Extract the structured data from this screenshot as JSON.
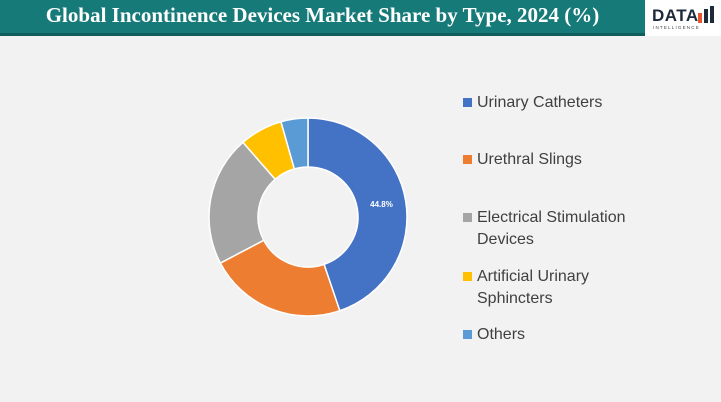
{
  "brand": {
    "name": "DATA",
    "tagline": "INTELLIGENCE"
  },
  "chart_data": {
    "type": "donut",
    "title": "Global Incontinence Devices Market Share by Type, 2024 (%)",
    "categories": [
      "Urinary Catheters",
      "Urethral Slings",
      "Electrical Stimulation Devices",
      "Artificial Urinary Sphincters",
      "Others"
    ],
    "values": [
      44.8,
      22.5,
      21.3,
      7.0,
      4.4
    ],
    "value_labels": [
      "44.8%",
      null,
      null,
      null,
      null
    ],
    "colors": [
      "#4472c4",
      "#ed7d31",
      "#a5a5a5",
      "#ffc000",
      "#5b9bd5"
    ],
    "legend": "right"
  }
}
